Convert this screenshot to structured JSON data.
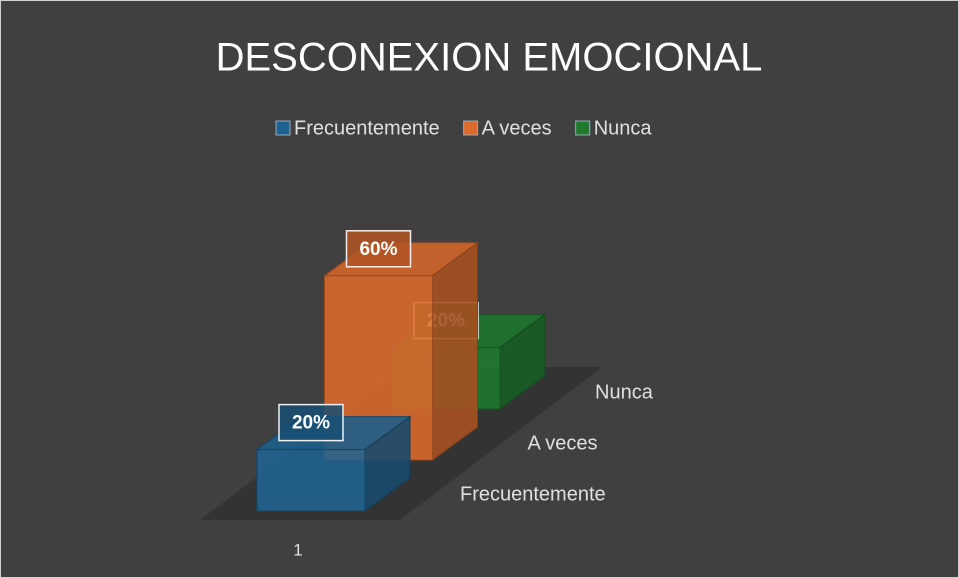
{
  "chart_data": {
    "type": "bar3d",
    "title": "DESCONEXION EMOCIONAL",
    "categories": [
      "1"
    ],
    "series": [
      {
        "name": "Frecuentemente",
        "color": "#1f6391",
        "values": [
          20
        ],
        "value_labels": [
          "20%"
        ]
      },
      {
        "name": "A veces",
        "color": "#dd6a2c",
        "values": [
          60
        ],
        "value_labels": [
          "60%"
        ]
      },
      {
        "name": "Nunca",
        "color": "#1f7a2e",
        "values": [
          20
        ],
        "value_labels": [
          "20%"
        ]
      }
    ],
    "legend": "top"
  }
}
